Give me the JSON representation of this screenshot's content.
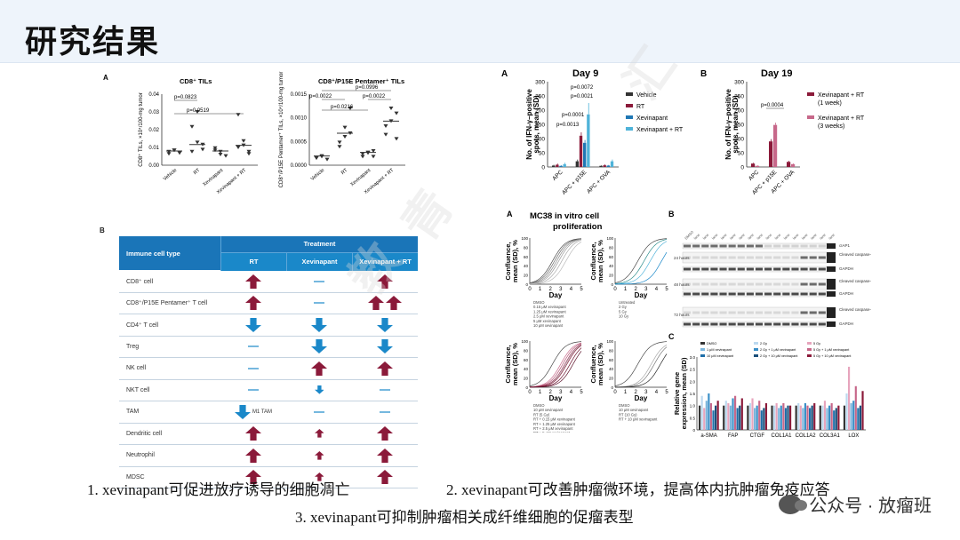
{
  "title": "研究结果",
  "watermark_text": "数 方 青 汇",
  "watermark_en": "CSTROYOUNG 2023. COM",
  "panel_a_top": {
    "label": "A",
    "chart1": {
      "title": "CD8⁺ TILs",
      "ylabel": "CD8⁺ TILs, ×10⁴/100-mg tumor",
      "yticks": [
        "0.00",
        "0.01",
        "0.02",
        "0.03",
        "0.04"
      ],
      "categories": [
        "Vehicle",
        "RT",
        "Xevinapant",
        "Xevinapant + RT"
      ],
      "pvals": [
        "p=0.0823",
        "p=0.0519"
      ]
    },
    "chart2": {
      "title": "CD8⁺/P15E Pentamer⁺ TILs",
      "ylabel": "CD8⁺/P15E Pentamer⁺ TILs, ×10⁴/100-mg tumor",
      "yticks": [
        "0.0000",
        "0.0005",
        "0.0010",
        "0.0015"
      ],
      "categories": [
        "Vehicle",
        "RT",
        "Xevinapant",
        "Xevinapant + RT"
      ],
      "pvals": [
        "p=0.0996",
        "p=0.0022",
        "p=0.0022",
        "p=0.0216"
      ]
    }
  },
  "panel_b_table": {
    "label": "B",
    "header_left": "Immune cell type",
    "header_treatment": "Treatment",
    "cols": [
      "RT",
      "Xevinapant",
      "Xevinapant + RT"
    ],
    "rows": [
      {
        "name": "CD8⁺ cell",
        "cells": [
          "up",
          "dash",
          "up"
        ]
      },
      {
        "name": "CD8⁺/P15E Pentamer⁺ T cell",
        "cells": [
          "up",
          "dash",
          "up2"
        ]
      },
      {
        "name": "CD4⁺ T cell",
        "cells": [
          "down",
          "down",
          "down"
        ]
      },
      {
        "name": "Treg",
        "cells": [
          "dash",
          "down",
          "down"
        ]
      },
      {
        "name": "NK cell",
        "cells": [
          "dash",
          "up",
          "up"
        ]
      },
      {
        "name": "NKT cell",
        "cells": [
          "dash",
          "downsmall",
          "dash"
        ]
      },
      {
        "name": "TAM",
        "cells": [
          "down_m1",
          "dash",
          "dash"
        ]
      },
      {
        "name": "Dendritic cell",
        "cells": [
          "up",
          "upsmall",
          "up"
        ]
      },
      {
        "name": "Neutrophil",
        "cells": [
          "up",
          "upsmall",
          "up"
        ]
      },
      {
        "name": "MDSC",
        "cells": [
          "up",
          "upsmall",
          "up"
        ]
      }
    ],
    "m1_label": "M1 TAM"
  },
  "day9": {
    "label": "A",
    "title": "Day 9",
    "ylabel": "No. of IFN-γ–positive spots, mean (SD)",
    "yticks": [
      "0",
      "50",
      "100",
      "150",
      "200",
      "250",
      "300"
    ],
    "categories": [
      "APC",
      "APC + p15E",
      "APC + OVA"
    ],
    "legend": [
      "Vehicle",
      "RT",
      "Xevinapant",
      "Xevinapant + RT"
    ],
    "colors": [
      "#333333",
      "#8b1a3a",
      "#1f77b4",
      "#4fb3d9"
    ],
    "pvals": [
      "p=0.0072",
      "p=0.0021",
      "p=0.0001",
      "p=0.0013"
    ]
  },
  "day19": {
    "label": "B",
    "title": "Day 19",
    "ylabel": "No. of IFN-γ–positive spots, mean (SD)",
    "yticks": [
      "0",
      "50",
      "100",
      "150",
      "200",
      "250",
      "300"
    ],
    "categories": [
      "APC",
      "APC + p15E",
      "APC + OVA"
    ],
    "legend": [
      "Xevinapant + RT (1 week)",
      "Xevinapant + RT (3 weeks)"
    ],
    "colors": [
      "#8b1a3a",
      "#c7688a"
    ],
    "pvals": [
      "p=0.0004"
    ]
  },
  "mc38": {
    "label": "A",
    "title": "MC38 in vitro cell proliferation",
    "ylabel": "Confluence, mean (SD), %",
    "xlabel": "Day",
    "xticks": [
      "0",
      "1",
      "2",
      "3",
      "4",
      "5"
    ],
    "yticks": [
      "0",
      "20",
      "40",
      "60",
      "80",
      "100"
    ],
    "legend1": [
      "DMSO",
      "0.15 μM xevinapant",
      "1.25 μM xevinapant",
      "2.5 μM xevinapant",
      "5 μM xevinapant",
      "10 μM xevinapant"
    ],
    "legend2": [
      "Untreated",
      "2 Gy",
      "5 Gy",
      "10 Gy"
    ],
    "legend3": [
      "DMSO",
      "10 μM xevinapant",
      "RT (5 Gy)",
      "RT + 0.15 μM xevinapant",
      "RT + 1.25 μM xevinapant",
      "RT + 2.5 μM xevinapant",
      "RT + 5 μM xevinapant",
      "RT + 10 μM xevinapant"
    ],
    "legend4": [
      "DMSO",
      "10 μM xevinapant",
      "RT (10 Gy)",
      "RT + 10 μM xevinapant"
    ]
  },
  "blot": {
    "label": "B",
    "rows": [
      "cIAP1",
      "Cleaved caspase-3",
      "GAPDH",
      "Cleaved caspase-3",
      "GAPDH",
      "Cleaved caspase-3",
      "GAPDH"
    ],
    "timepoints": [
      "24 hours",
      "48 hours",
      "72 hours"
    ]
  },
  "gene": {
    "label": "C",
    "ylabel": "Relative gene expression, mean (SD)",
    "categories": [
      "a-SMA",
      "FAP",
      "CTGF",
      "COL1A1",
      "COL1A2",
      "COL3A1",
      "LOX"
    ],
    "legend": [
      "DMSO",
      "2 Gy",
      "5 Gy",
      "1 μM xevinapant",
      "2 Gy + 1 μM xevinapant",
      "5 Gy + 1 μM xevinapant",
      "10 μM xevinapant",
      "2 Gy + 10 μM xevinapant",
      "5 Gy + 10 μM xevinapant"
    ],
    "yticks": [
      "0",
      "0.5",
      "1.0",
      "1.5",
      "2.0",
      "2.5",
      "3.0"
    ]
  },
  "captions": {
    "c1": "1. xevinapant可促进放疗诱导的细胞凋亡",
    "c2": "2. xevinapant可改善肿瘤微环境，提高体内抗肿瘤免疫应答",
    "c3": "3. xevinapant可抑制肿瘤相关成纤维细胞的促瘤表型"
  },
  "brand": "公众号 · 放瘤班"
}
